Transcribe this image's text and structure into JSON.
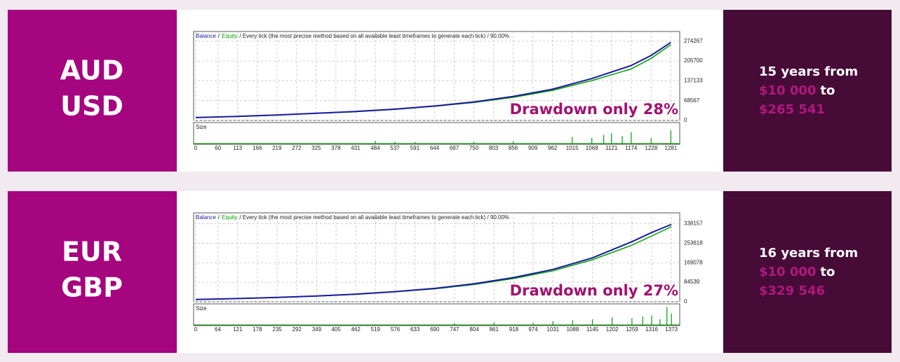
{
  "chart_data": [
    {
      "type": "line",
      "pair": [
        "AUD",
        "USD"
      ],
      "separator": "/",
      "header_text": "/ Every tick (the most precise method based on all available least timeframes to generate each tick) / 90.00%",
      "annotation": "Drawdown only 28%",
      "summary": {
        "period": "15 years from",
        "from": "$10 000",
        "to": "to",
        "result": "$265 541"
      },
      "x": [
        0,
        113,
        219,
        325,
        431,
        537,
        644,
        750,
        856,
        962,
        1068,
        1174,
        1228,
        1281
      ],
      "series": [
        {
          "name": "Balance",
          "color": "#1a1aa0",
          "values": [
            10000,
            14000,
            19000,
            25000,
            31000,
            39000,
            50000,
            64000,
            83000,
            108000,
            145000,
            190000,
            225000,
            270000
          ]
        },
        {
          "name": "Equity",
          "color": "#00a000",
          "values": [
            10000,
            13500,
            18500,
            24500,
            30000,
            38000,
            49000,
            62000,
            80000,
            104000,
            138000,
            178000,
            215000,
            262000
          ]
        }
      ],
      "xlim": [
        0,
        1305
      ],
      "ylim": [
        0,
        302900
      ],
      "xticks": [
        0,
        60,
        113,
        166,
        219,
        272,
        325,
        378,
        431,
        484,
        537,
        591,
        644,
        697,
        750,
        803,
        856,
        909,
        962,
        1015,
        1068,
        1121,
        1174,
        1228,
        1281
      ],
      "yticks": [
        0,
        68567,
        137133,
        205700,
        274267
      ],
      "grid": true,
      "size": {
        "name": "Size",
        "color": "#00a000",
        "ylim": [
          0,
          100
        ],
        "x": [
          484,
          537,
          591,
          750,
          856,
          1015,
          1068,
          1100,
          1121,
          1150,
          1174,
          1228,
          1281
        ],
        "values": [
          15,
          10,
          8,
          10,
          12,
          35,
          30,
          45,
          55,
          40,
          60,
          30,
          70
        ]
      }
    },
    {
      "type": "line",
      "pair": [
        "EUR",
        "GBP"
      ],
      "separator": "/",
      "header_text": "/ Every tick (the most precise method based on all available least timeframes to generate each tick) / 90.00%",
      "annotation": "Drawdown only 27%",
      "summary": {
        "period": "16 years from",
        "from": "$10 000",
        "to": "to",
        "result": "$329 546"
      },
      "x": [
        0,
        121,
        235,
        349,
        462,
        576,
        690,
        804,
        918,
        1031,
        1145,
        1259,
        1316,
        1373
      ],
      "series": [
        {
          "name": "Balance",
          "color": "#1a1aa0",
          "values": [
            10000,
            14000,
            19000,
            25000,
            33000,
            44000,
            58000,
            78000,
            105000,
            140000,
            190000,
            260000,
            300000,
            335000
          ]
        },
        {
          "name": "Equity",
          "color": "#00a000",
          "values": [
            10000,
            13500,
            18500,
            24500,
            32000,
            43000,
            56000,
            75000,
            101000,
            134000,
            182000,
            245000,
            285000,
            325000
          ]
        }
      ],
      "xlim": [
        0,
        1397
      ],
      "ylim": [
        0,
        379000
      ],
      "xticks": [
        0,
        64,
        121,
        178,
        235,
        292,
        349,
        405,
        462,
        519,
        576,
        633,
        690,
        747,
        804,
        861,
        918,
        974,
        1031,
        1088,
        1145,
        1202,
        1259,
        1316,
        1373
      ],
      "yticks": [
        0,
        84539,
        169078,
        253618,
        338157
      ],
      "grid": true,
      "size": {
        "name": "Size",
        "color": "#00a000",
        "ylim": [
          0,
          100
        ],
        "x": [
          747,
          861,
          974,
          1031,
          1088,
          1145,
          1202,
          1259,
          1290,
          1316,
          1340,
          1360,
          1373
        ],
        "values": [
          10,
          15,
          12,
          20,
          25,
          30,
          40,
          35,
          45,
          50,
          30,
          95,
          60
        ]
      }
    }
  ]
}
